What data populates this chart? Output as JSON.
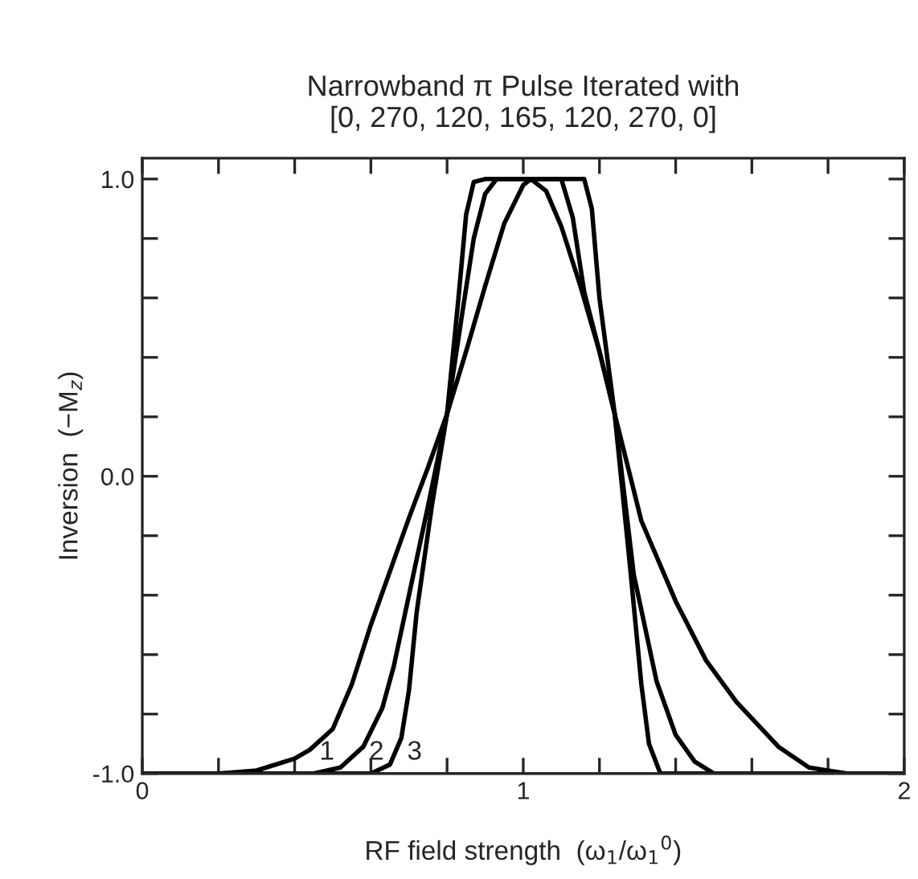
{
  "chart_data": {
    "type": "line",
    "title": "Narrowband π Pulse Iterated with\n[0, 270, 120, 165, 120, 270, 0]",
    "xlabel": "RF field strength  (ω$_{1}$/ω$_{1}$$^{0}$)",
    "ylabel": "Inversion  (−M$_{z}$)",
    "xlim": [
      0,
      2
    ],
    "ylim": [
      -1,
      1.07
    ],
    "xticks": [
      0,
      {
        "value": 0.2,
        "label": null
      },
      {
        "value": 0.4,
        "label": null
      },
      {
        "value": 0.6,
        "label": null
      },
      {
        "value": 0.8,
        "label": null
      },
      1,
      {
        "value": 1.2,
        "label": null
      },
      {
        "value": 1.4,
        "label": null
      },
      {
        "value": 1.6,
        "label": null
      },
      {
        "value": 1.8,
        "label": null
      },
      2
    ],
    "yticks": [
      {
        "value": -1,
        "label": "-1.0"
      },
      {
        "value": -0.8,
        "label": null
      },
      {
        "value": -0.6,
        "label": null
      },
      {
        "value": -0.4,
        "label": null
      },
      {
        "value": -0.2,
        "label": null
      },
      {
        "value": 0,
        "label": "0.0"
      },
      {
        "value": 0.2,
        "label": null
      },
      {
        "value": 0.4,
        "label": null
      },
      {
        "value": 0.6,
        "label": null
      },
      {
        "value": 0.8,
        "label": null
      },
      {
        "value": 1,
        "label": "1.0"
      }
    ],
    "grid": false,
    "legend": false,
    "line_style": "solid",
    "series": [
      {
        "color": "#000000",
        "x": [
          0,
          0.2,
          0.3,
          0.4,
          0.44,
          0.5,
          0.55,
          0.6,
          0.65,
          0.7,
          0.75,
          0.8,
          0.85,
          0.9,
          0.95,
          1.0,
          1.02,
          1.06,
          1.1,
          1.15,
          1.2,
          1.24,
          1.31,
          1.4,
          1.48,
          1.56,
          1.67,
          1.75,
          1.85,
          2.0
        ],
        "values": [
          -1,
          -1,
          -0.99,
          -0.95,
          -0.92,
          -0.85,
          -0.7,
          -0.5,
          -0.32,
          -0.14,
          0.03,
          0.21,
          0.42,
          0.64,
          0.85,
          0.98,
          1.0,
          0.96,
          0.84,
          0.64,
          0.42,
          0.21,
          -0.15,
          -0.42,
          -0.62,
          -0.76,
          -0.91,
          -0.98,
          -1.0,
          -1.0
        ]
      },
      {
        "color": "#000000",
        "x": [
          0,
          0.45,
          0.52,
          0.58,
          0.63,
          0.66,
          0.69,
          0.75,
          0.8,
          0.84,
          0.87,
          0.9,
          0.93,
          1.1,
          1.13,
          1.16,
          1.2,
          1.24,
          1.29,
          1.35,
          1.4,
          1.45,
          1.5,
          2.0
        ],
        "values": [
          -1,
          -1,
          -0.98,
          -0.91,
          -0.78,
          -0.64,
          -0.46,
          -0.1,
          0.21,
          0.55,
          0.8,
          0.95,
          1.0,
          1.0,
          0.87,
          0.62,
          0.42,
          0.21,
          -0.33,
          -0.69,
          -0.87,
          -0.96,
          -1.0,
          -1.0
        ]
      },
      {
        "color": "#000000",
        "x": [
          0,
          0.6,
          0.65,
          0.68,
          0.7,
          0.72,
          0.76,
          0.8,
          0.83,
          0.85,
          0.87,
          0.9,
          1.16,
          1.18,
          1.2,
          1.24,
          1.28,
          1.31,
          1.33,
          1.36,
          2.0
        ],
        "values": [
          -1,
          -1,
          -0.97,
          -0.88,
          -0.72,
          -0.46,
          -0.1,
          0.21,
          0.6,
          0.88,
          0.99,
          1.0,
          1.0,
          0.9,
          0.6,
          0.21,
          -0.3,
          -0.7,
          -0.9,
          -1.0,
          -1.0
        ]
      }
    ],
    "annotations": [
      {
        "text": "1",
        "x": 0.43,
        "y": -0.93
      },
      {
        "text": "2",
        "x": 0.56,
        "y": -0.93
      },
      {
        "text": "3",
        "x": 0.66,
        "y": -0.93
      }
    ]
  }
}
